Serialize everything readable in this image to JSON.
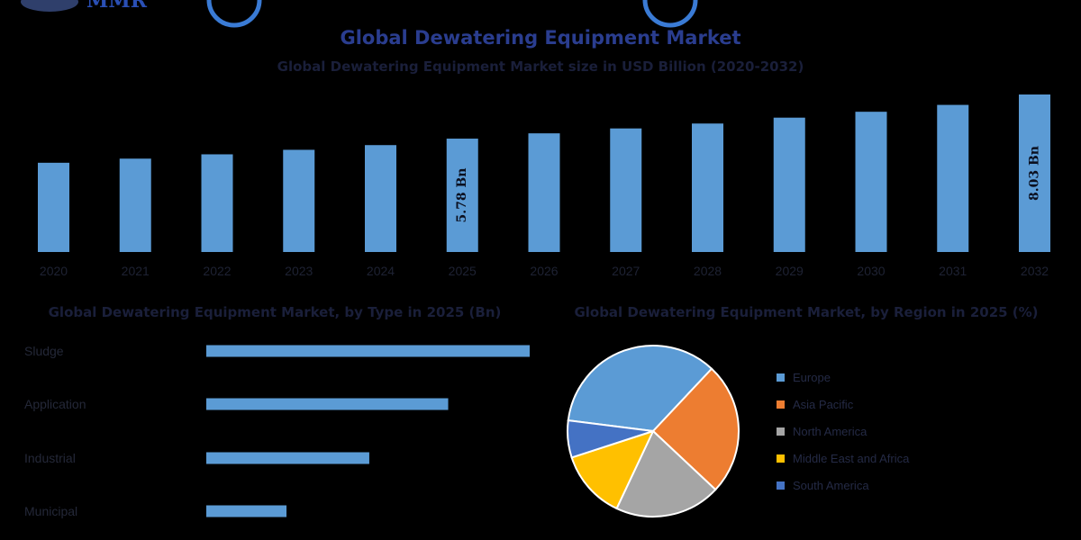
{
  "logo": {
    "text": "MMR"
  },
  "colors": {
    "bar": "#5b9bd5",
    "europe": "#5b9bd5",
    "asia_pacific": "#ed7d31",
    "north_america": "#a5a5a5",
    "middle_east_africa": "#ffc000",
    "south_america": "#4472c4"
  },
  "chart_data": [
    {
      "type": "bar",
      "title": "Global Dewatering Equipment Market",
      "subtitle": "Global Dewatering Equipment Market size in USD Billion (2020-2032)",
      "categories": [
        "2020",
        "2021",
        "2022",
        "2023",
        "2024",
        "2025",
        "2026",
        "2027",
        "2028",
        "2029",
        "2030",
        "2031",
        "2032"
      ],
      "values": [
        4.55,
        4.76,
        4.98,
        5.21,
        5.45,
        5.78,
        6.05,
        6.3,
        6.55,
        6.85,
        7.15,
        7.5,
        8.03
      ],
      "data_labels": {
        "5": "5.78 Bn",
        "12": "8.03 Bn"
      },
      "ylim": [
        0,
        8.03
      ],
      "grid": false
    },
    {
      "type": "bar",
      "orientation": "horizontal",
      "title": "Global Dewatering Equipment Market, by Type in 2025 (Bn)",
      "categories": [
        "Sludge",
        "Application",
        "Industrial",
        "Municipal"
      ],
      "values": [
        2.5,
        1.87,
        1.26,
        0.62
      ],
      "xlim": [
        0,
        2.5
      ],
      "grid": false
    },
    {
      "type": "pie",
      "title": "Global Dewatering Equipment Market, by Region in 2025 (%)",
      "categories": [
        "Europe",
        "Asia Pacific",
        "North America",
        "Middle East and Africa",
        "South America"
      ],
      "values": [
        35,
        25,
        20,
        13,
        7
      ],
      "legend": "right"
    }
  ]
}
